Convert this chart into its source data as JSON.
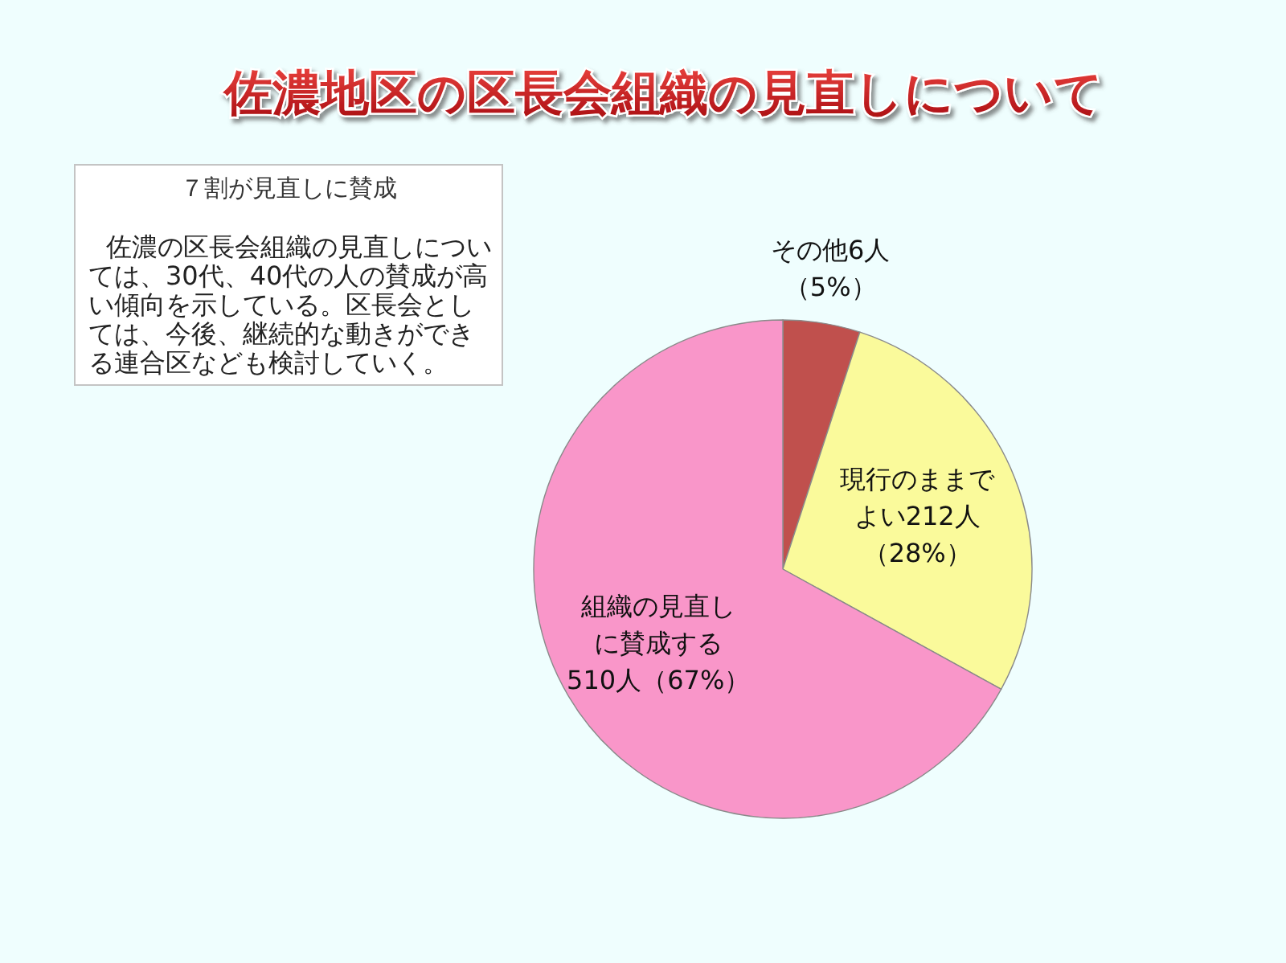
{
  "chart_data": {
    "type": "pie",
    "title": "佐濃地区の区長会組織の見直しについて",
    "categories": [
      "その他6人",
      "現行のままでよい212人",
      "組織の見直しに賛成する510人"
    ],
    "values": [
      5,
      28,
      67
    ],
    "value_labels": [
      "（5%）",
      "（28%）",
      "（67%）"
    ],
    "colors": [
      "#c0504d",
      "#fafa9b",
      "#f996c9"
    ],
    "annotations": [
      "７割が見直しに賛成",
      "佐濃の区長会組織の見直しについては、30代、40代の人の賛成が高い傾向を示している。区長会としては、今後、継続的な動きができる連合区なども検討していく。"
    ]
  }
}
